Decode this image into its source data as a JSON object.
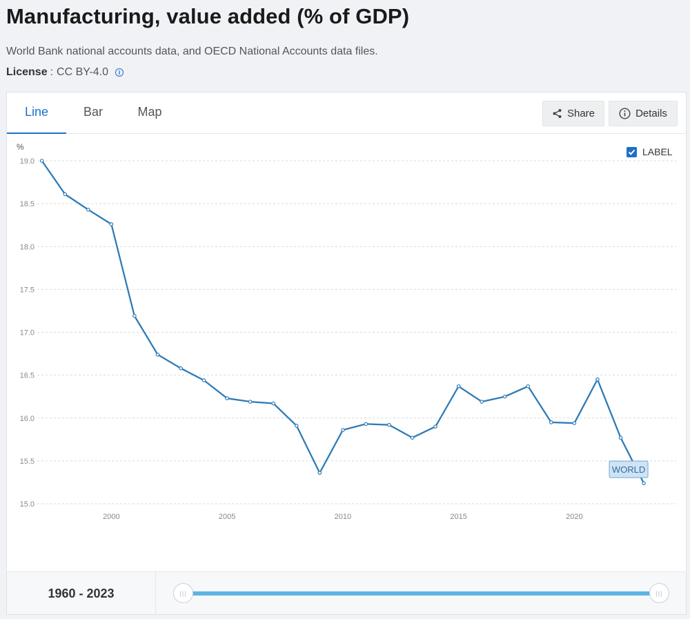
{
  "header": {
    "title": "Manufacturing, value added (% of GDP)",
    "source": "World Bank national accounts data, and OECD National Accounts data files.",
    "license_label": "License",
    "license_sep": ":",
    "license_value": "CC BY-4.0"
  },
  "tabs": [
    {
      "label": "Line",
      "active": true
    },
    {
      "label": "Bar",
      "active": false
    },
    {
      "label": "Map",
      "active": false
    }
  ],
  "toolbar": {
    "share_label": "Share",
    "details_label": "Details"
  },
  "label_toggle": {
    "label": "LABEL",
    "checked": true
  },
  "footer": {
    "range_start": "1960",
    "range_sep": "-",
    "range_end": "2023"
  },
  "colors": {
    "line": "#2e7bb6",
    "accent": "#1f6fc9",
    "slider": "#5fb3e4"
  },
  "chart_data": {
    "type": "line",
    "title": "Manufacturing, value added (% of GDP)",
    "ylabel": "%",
    "xlabel": "",
    "x_ticks": [
      2000,
      2005,
      2010,
      2015,
      2020
    ],
    "y_ticks": [
      19.0,
      18.5,
      18.0,
      17.5,
      17.0,
      16.5,
      16.0,
      15.5,
      15.0
    ],
    "xlim": [
      1996.8,
      2024.4
    ],
    "ylim": [
      15.0,
      19.0
    ],
    "grid": true,
    "series": [
      {
        "name": "WORLD",
        "x": [
          1997,
          1998,
          1999,
          2000,
          2001,
          2002,
          2003,
          2004,
          2005,
          2006,
          2007,
          2008,
          2009,
          2010,
          2011,
          2012,
          2013,
          2014,
          2015,
          2016,
          2017,
          2018,
          2019,
          2020,
          2021,
          2022,
          2023
        ],
        "values": [
          19.0,
          18.61,
          18.43,
          18.26,
          17.19,
          16.74,
          16.58,
          16.44,
          16.23,
          16.19,
          16.17,
          15.91,
          15.36,
          15.86,
          15.93,
          15.92,
          15.77,
          15.9,
          16.37,
          16.19,
          16.25,
          16.37,
          15.95,
          15.94,
          16.45,
          15.77,
          15.24
        ]
      }
    ]
  }
}
